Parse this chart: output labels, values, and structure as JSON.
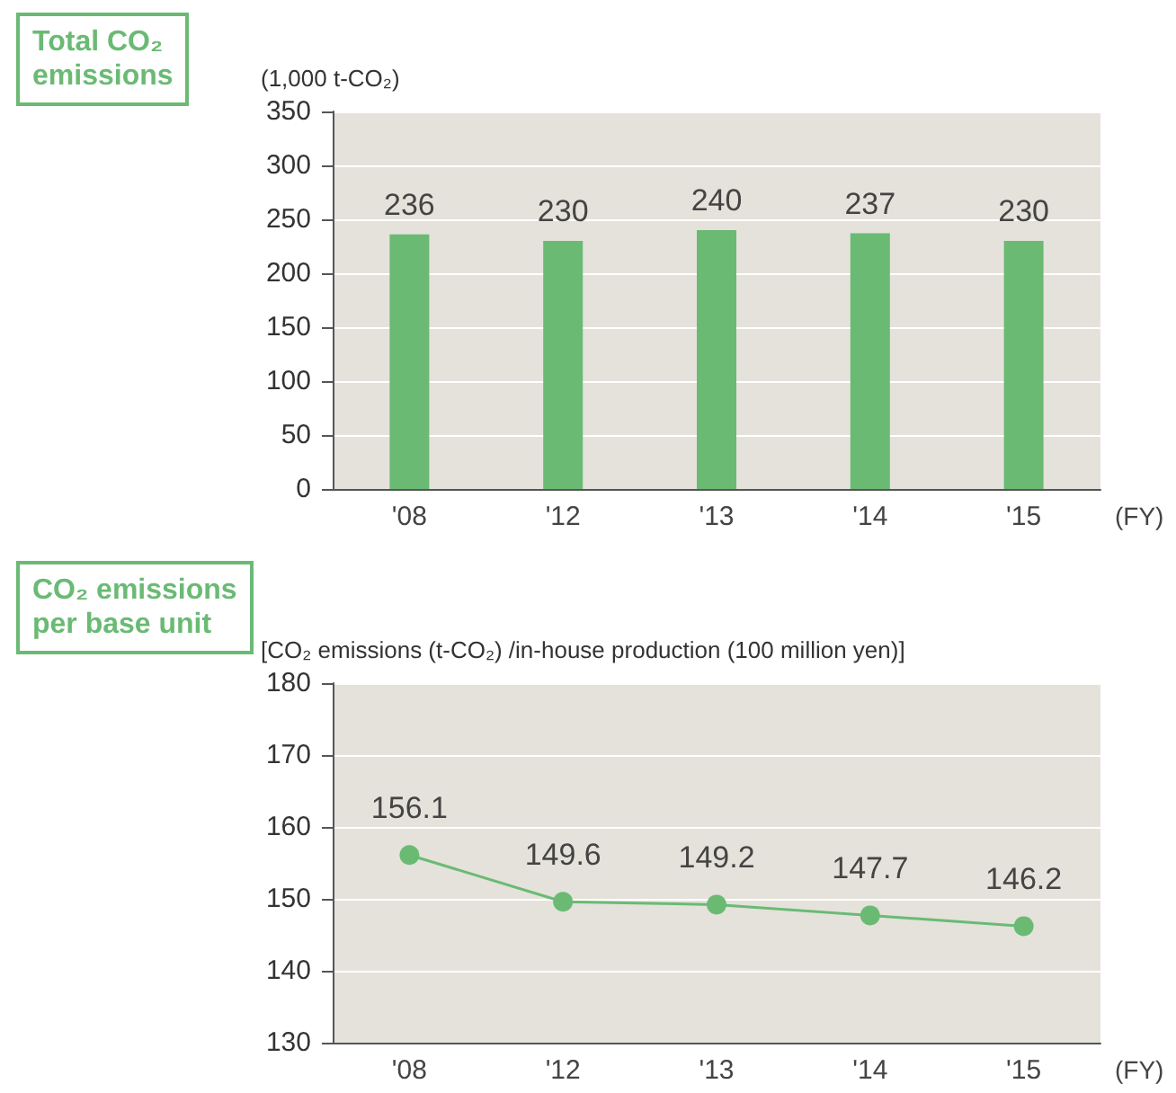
{
  "chart_data": [
    {
      "type": "bar",
      "title": "Total CO₂\nemissions",
      "ylabel": "(1,000 t-CO₂)",
      "xlabel": "(FY)",
      "categories": [
        "'08",
        "'12",
        "'13",
        "'14",
        "'15"
      ],
      "values": [
        236,
        230,
        240,
        237,
        230
      ],
      "color": "#6aba74",
      "ylim": [
        0,
        350
      ],
      "yticks": [
        0,
        50,
        100,
        150,
        200,
        250,
        300,
        350
      ],
      "grid": "y",
      "data_labels": true
    },
    {
      "type": "line",
      "title": "CO₂ emissions\nper base unit",
      "ylabel": "[CO₂ emissions (t-CO₂) /in-house production (100 million yen)]",
      "xlabel": "(FY)",
      "categories": [
        "'08",
        "'12",
        "'13",
        "'14",
        "'15"
      ],
      "values": [
        156.1,
        149.6,
        149.2,
        147.7,
        146.2
      ],
      "color": "#6aba74",
      "marker": "circle",
      "ylim": [
        130,
        180
      ],
      "yticks": [
        130,
        140,
        150,
        160,
        170,
        180
      ],
      "grid": "y",
      "data_labels": true
    }
  ]
}
